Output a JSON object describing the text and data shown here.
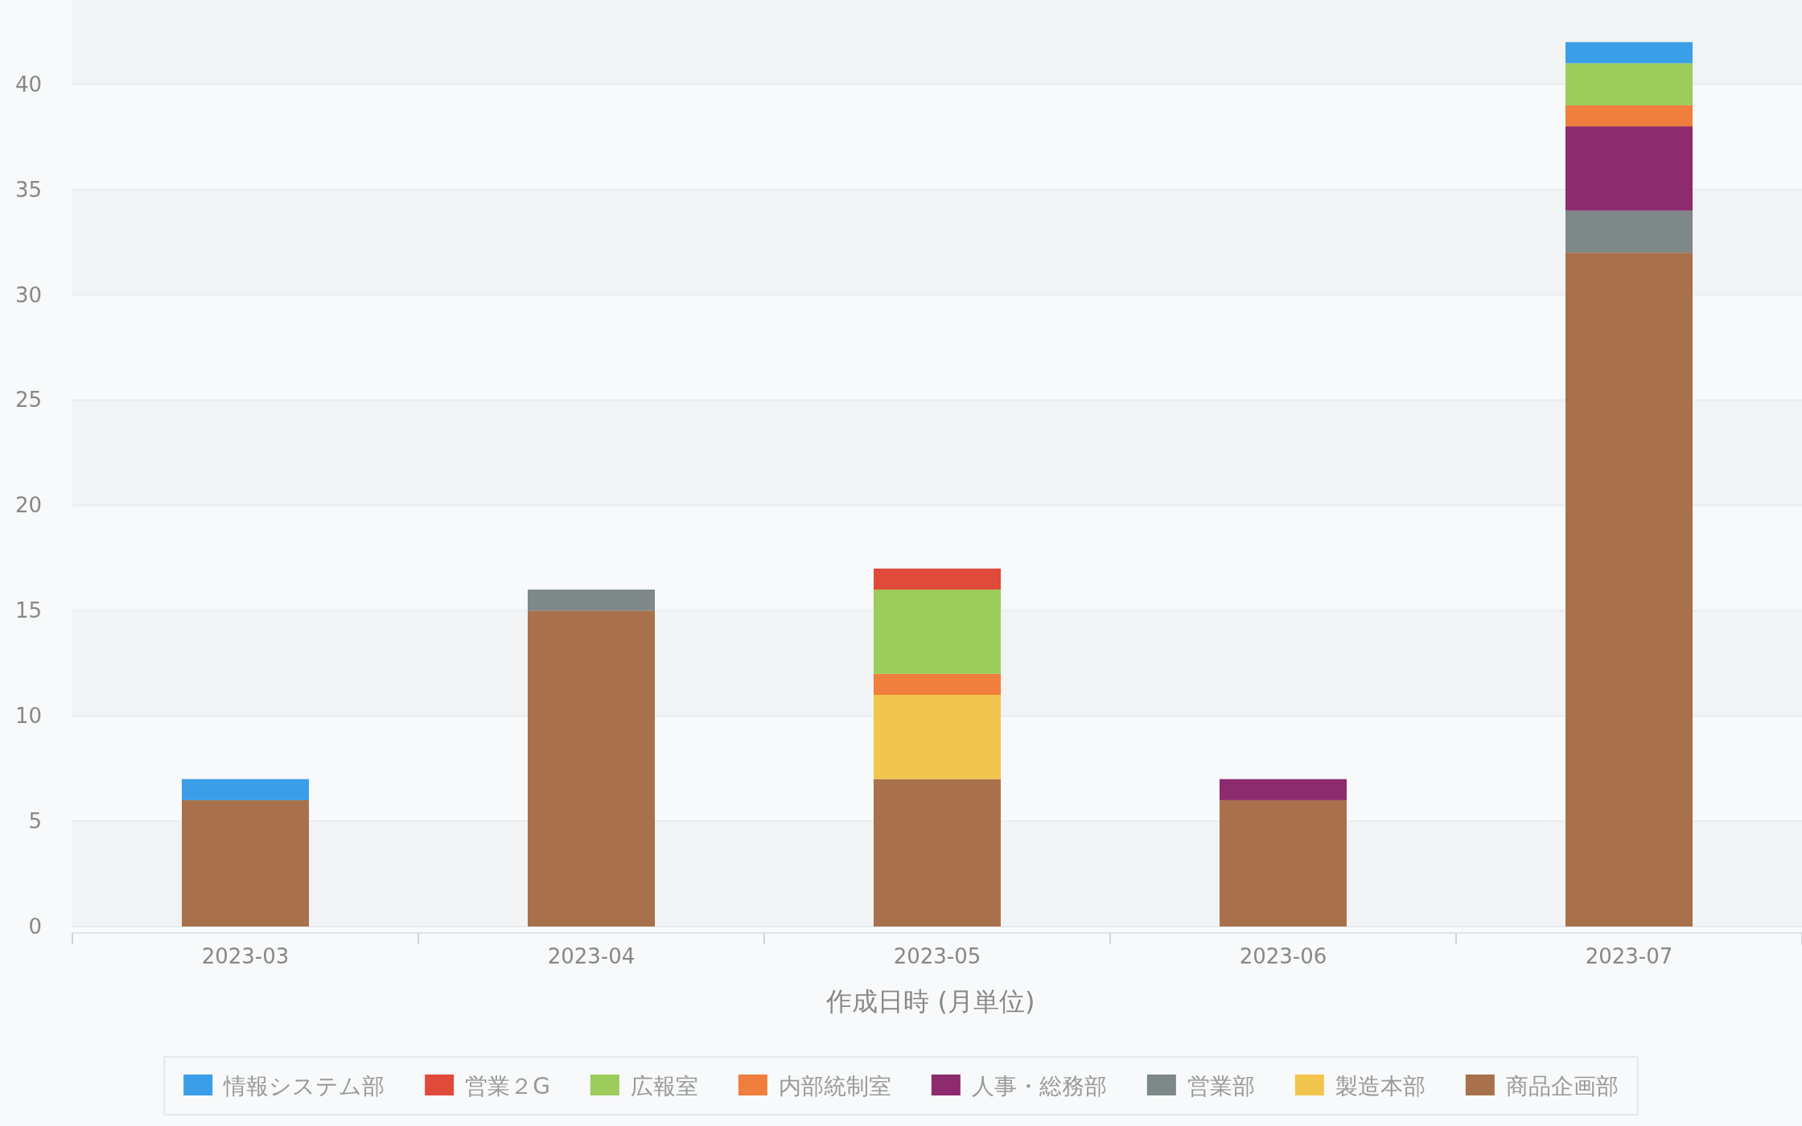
{
  "chart_data": {
    "type": "bar",
    "stacked": true,
    "xlabel": "作成日時 (月単位)",
    "categories": [
      "2023-03",
      "2023-04",
      "2023-05",
      "2023-06",
      "2023-07"
    ],
    "series": [
      {
        "name": "商品企画部",
        "color": "#a9714b",
        "values": [
          6,
          15,
          7,
          6,
          32
        ]
      },
      {
        "name": "製造本部",
        "color": "#f2c64e",
        "values": [
          0,
          0,
          4,
          0,
          0
        ]
      },
      {
        "name": "営業部",
        "color": "#7f8888",
        "values": [
          0,
          1,
          0,
          0,
          2
        ]
      },
      {
        "name": "人事・総務部",
        "color": "#8e2a6e",
        "values": [
          0,
          0,
          0,
          1,
          4
        ]
      },
      {
        "name": "内部統制室",
        "color": "#f07e3c",
        "values": [
          0,
          0,
          1,
          0,
          1
        ]
      },
      {
        "name": "広報室",
        "color": "#9ccc5c",
        "values": [
          0,
          0,
          4,
          0,
          2
        ]
      },
      {
        "name": "営業２G",
        "color": "#e04a3a",
        "values": [
          0,
          0,
          1,
          0,
          0
        ]
      },
      {
        "name": "情報システム部",
        "color": "#3a9ee8",
        "values": [
          1,
          0,
          0,
          0,
          1
        ]
      }
    ],
    "ylim": [
      0,
      44
    ],
    "yticks": [
      0,
      5,
      10,
      15,
      20,
      25,
      30,
      35,
      40
    ],
    "grid": "y",
    "legend": "bottom"
  }
}
